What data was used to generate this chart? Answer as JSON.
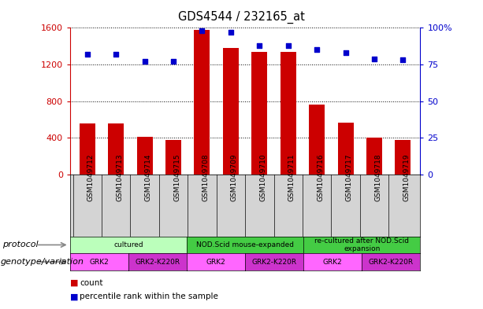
{
  "title": "GDS4544 / 232165_at",
  "samples": [
    "GSM1049712",
    "GSM1049713",
    "GSM1049714",
    "GSM1049715",
    "GSM1049708",
    "GSM1049709",
    "GSM1049710",
    "GSM1049711",
    "GSM1049716",
    "GSM1049717",
    "GSM1049718",
    "GSM1049719"
  ],
  "counts": [
    560,
    555,
    410,
    380,
    1580,
    1380,
    1340,
    1340,
    760,
    570,
    400,
    380
  ],
  "percentiles": [
    82,
    82,
    77,
    77,
    98,
    97,
    88,
    88,
    85,
    83,
    79,
    78
  ],
  "left_ylim": [
    0,
    1600
  ],
  "right_ylim": [
    0,
    100
  ],
  "left_yticks": [
    0,
    400,
    800,
    1200,
    1600
  ],
  "right_yticks": [
    0,
    25,
    50,
    75,
    100
  ],
  "right_yticklabels": [
    "0",
    "25",
    "50",
    "75",
    "100%"
  ],
  "bar_color": "#cc0000",
  "dot_color": "#0000cc",
  "chart_bg": "#ffffff",
  "sample_bg": "#d4d4d4",
  "protocol_groups": [
    {
      "label": "cultured",
      "start": 0,
      "end": 4,
      "color": "#bbffbb"
    },
    {
      "label": "NOD.Scid mouse-expanded",
      "start": 4,
      "end": 8,
      "color": "#44cc44"
    },
    {
      "label": "re-cultured after NOD.Scid\nexpansion",
      "start": 8,
      "end": 12,
      "color": "#44cc44"
    }
  ],
  "genotype_groups": [
    {
      "label": "GRK2",
      "start": 0,
      "end": 2,
      "color": "#ff66ff"
    },
    {
      "label": "GRK2-K220R",
      "start": 2,
      "end": 4,
      "color": "#cc33cc"
    },
    {
      "label": "GRK2",
      "start": 4,
      "end": 6,
      "color": "#ff66ff"
    },
    {
      "label": "GRK2-K220R",
      "start": 6,
      "end": 8,
      "color": "#cc33cc"
    },
    {
      "label": "GRK2",
      "start": 8,
      "end": 10,
      "color": "#ff66ff"
    },
    {
      "label": "GRK2-K220R",
      "start": 10,
      "end": 12,
      "color": "#cc33cc"
    }
  ],
  "protocol_label": "protocol",
  "genotype_label": "genotype/variation",
  "legend_count_label": "count",
  "legend_pct_label": "percentile rank within the sample",
  "grid_color": "#000000",
  "grid_linestyle": ":",
  "grid_linewidth": 0.7
}
